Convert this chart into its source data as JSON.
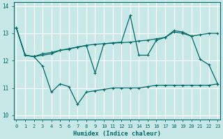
{
  "bg_color": "#c8e8e8",
  "grid_color": "#b0d8d8",
  "line_color": "#006868",
  "xlabel": "Humidex (Indice chaleur)",
  "xlim": [
    -0.3,
    23.3
  ],
  "ylim": [
    9.85,
    14.15
  ],
  "yticks": [
    10,
    11,
    12,
    13,
    14
  ],
  "xticks": [
    0,
    1,
    2,
    3,
    4,
    5,
    6,
    7,
    8,
    9,
    10,
    11,
    12,
    13,
    14,
    15,
    16,
    17,
    18,
    19,
    20,
    21,
    22,
    23
  ],
  "line1_y": [
    13.2,
    12.2,
    12.15,
    12.25,
    12.3,
    12.38,
    12.44,
    12.5,
    12.56,
    12.6,
    12.62,
    12.64,
    12.66,
    12.68,
    12.72,
    12.75,
    12.8,
    12.85,
    13.05,
    13.0,
    12.9,
    12.95,
    13.0,
    13.0
  ],
  "line2_y": [
    13.2,
    12.2,
    12.15,
    12.2,
    12.25,
    12.38,
    12.42,
    12.5,
    12.55,
    11.55,
    12.62,
    12.65,
    12.68,
    13.65,
    12.2,
    12.2,
    12.75,
    12.85,
    13.1,
    13.05,
    12.9,
    12.05,
    11.85,
    11.15
  ],
  "line3_y": [
    13.2,
    12.2,
    12.15,
    11.8,
    10.85,
    11.15,
    11.05,
    10.4,
    10.85,
    10.9,
    10.95,
    11.0,
    11.0,
    11.0,
    11.0,
    11.05,
    11.1,
    11.1,
    11.1,
    11.1,
    11.1,
    11.1,
    11.1,
    11.15
  ]
}
